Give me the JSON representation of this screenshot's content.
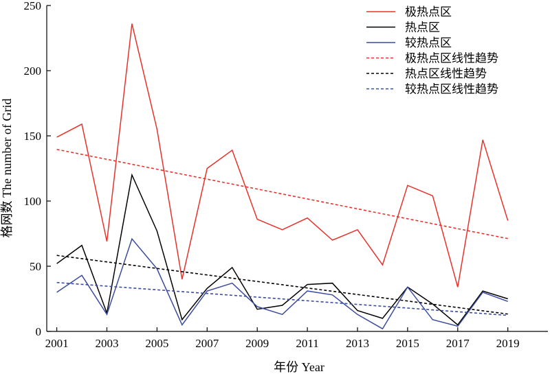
{
  "chart_data": {
    "type": "line",
    "xlabel": "年份 Year",
    "ylabel": "格网数 The number of Grid",
    "xlim": [
      2000.6,
      2020.6
    ],
    "ylim": [
      0,
      250
    ],
    "x_ticks": [
      2001,
      2003,
      2005,
      2007,
      2009,
      2011,
      2013,
      2015,
      2017,
      2019
    ],
    "y_ticks": [
      0,
      50,
      100,
      150,
      200,
      250
    ],
    "grid": false,
    "legend_position": "top-right",
    "x": [
      2001,
      2002,
      2003,
      2004,
      2005,
      2006,
      2007,
      2008,
      2009,
      2010,
      2011,
      2012,
      2013,
      2014,
      2015,
      2016,
      2017,
      2018,
      2019
    ],
    "series": [
      {
        "name": "极热点区",
        "color": "#e8312a",
        "dash": false,
        "values": [
          149,
          159,
          69,
          236,
          155,
          40,
          125,
          139,
          86,
          78,
          87,
          70,
          78,
          51,
          112,
          104,
          34,
          147,
          85
        ]
      },
      {
        "name": "热点区",
        "color": "#000000",
        "dash": false,
        "values": [
          52,
          66,
          14,
          120,
          77,
          9,
          33,
          49,
          17,
          20,
          36,
          37,
          16,
          10,
          34,
          21,
          5,
          31,
          25
        ]
      },
      {
        "name": "较热点区",
        "color": "#3a4a9e",
        "dash": false,
        "values": [
          30,
          43,
          13,
          71,
          48,
          5,
          31,
          37,
          19,
          13,
          31,
          28,
          13,
          2,
          34,
          9,
          4,
          30,
          23
        ]
      },
      {
        "name": "极热点区线性趋势",
        "color": "#e8312a",
        "dash": true,
        "values": [
          139.6,
          135.8,
          132.0,
          128.2,
          124.4,
          120.6,
          116.8,
          113.0,
          109.2,
          105.4,
          101.6,
          97.8,
          94.0,
          90.2,
          86.4,
          82.6,
          78.8,
          75.0,
          71.2
        ]
      },
      {
        "name": "热点区线性趋势",
        "color": "#000000",
        "dash": true,
        "values": [
          58.3,
          55.8,
          53.3,
          50.8,
          48.3,
          45.8,
          43.3,
          40.8,
          38.3,
          35.8,
          33.3,
          30.8,
          28.3,
          25.8,
          23.3,
          20.8,
          18.3,
          15.8,
          13.3
        ]
      },
      {
        "name": "较热点区线性趋势",
        "color": "#3a4a9e",
        "dash": true,
        "values": [
          37.5,
          36.1,
          34.7,
          33.3,
          31.9,
          30.5,
          29.1,
          27.7,
          26.3,
          24.9,
          23.5,
          22.1,
          20.7,
          19.3,
          17.9,
          16.5,
          15.1,
          13.7,
          12.3
        ]
      }
    ]
  }
}
